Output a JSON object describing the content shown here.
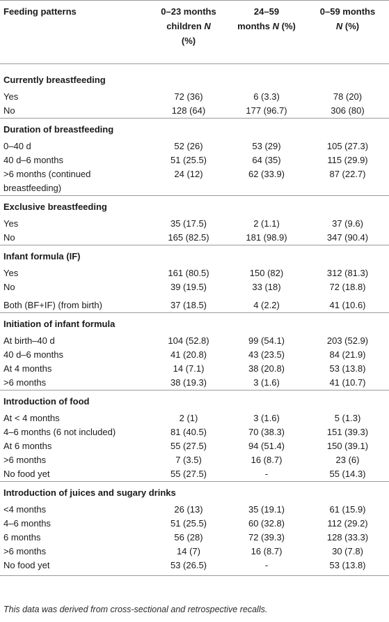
{
  "table": {
    "headers": {
      "col0": "Feeding patterns",
      "col1_line1": "0–23 months",
      "col1_line2_a": "children ",
      "col1_line2_n": "N",
      "col1_line3": "(%)",
      "col2_line1": "24–59",
      "col2_line2_a": "months ",
      "col2_line2_n": "N",
      "col2_line2_b": " (%)",
      "col3_line1": "0–59 months",
      "col3_line2_n": "N",
      "col3_line2_b": " (%)"
    },
    "sections": [
      {
        "title": "Currently breastfeeding",
        "rows": [
          {
            "label": "Yes",
            "c1": "72 (36)",
            "c2": "6 (3.3)",
            "c3": "78 (20)"
          },
          {
            "label": "No",
            "c1": "128 (64)",
            "c2": "177 (96.7)",
            "c3": "306 (80)"
          }
        ]
      },
      {
        "title": "Duration of breastfeeding",
        "rows": [
          {
            "label": "0–40 d",
            "c1": "52 (26)",
            "c2": "53 (29)",
            "c3": "105 (27.3)"
          },
          {
            "label": "40 d–6 months",
            "c1": "51 (25.5)",
            "c2": "64 (35)",
            "c3": "115 (29.9)"
          },
          {
            "label": ">6 months (continued",
            "label2": "breastfeeding)",
            "c1": "24 (12)",
            "c2": "62 (33.9)",
            "c3": "87 (22.7)"
          }
        ]
      },
      {
        "title": "Exclusive breastfeeding",
        "rows": [
          {
            "label": "Yes",
            "c1": "35 (17.5)",
            "c2": "2 (1.1)",
            "c3": "37 (9.6)"
          },
          {
            "label": "No",
            "c1": "165 (82.5)",
            "c2": "181 (98.9)",
            "c3": "347 (90.4)"
          }
        ]
      },
      {
        "title": "Infant formula (IF)",
        "rows": [
          {
            "label": "Yes",
            "c1": "161 (80.5)",
            "c2": "150 (82)",
            "c3": "312 (81.3)"
          },
          {
            "label": "No",
            "c1": "39 (19.5)",
            "c2": "33 (18)",
            "c3": "72 (18.8)"
          },
          {
            "label": "Both (BF+IF) (from birth)",
            "c1": "37 (18.5)",
            "c2": "4 (2.2)",
            "c3": "41 (10.6)"
          }
        ]
      },
      {
        "title": "Initiation of infant formula",
        "rows": [
          {
            "label": "At birth–40 d",
            "c1": "104 (52.8)",
            "c2": "99 (54.1)",
            "c3": "203 (52.9)"
          },
          {
            "label": "40 d–6 months",
            "c1": "41 (20.8)",
            "c2": "43 (23.5)",
            "c3": "84 (21.9)"
          },
          {
            "label": "At 4 months",
            "c1": "14 (7.1)",
            "c2": "38 (20.8)",
            "c3": "53 (13.8)"
          },
          {
            "label": ">6 months",
            "c1": "38 (19.3)",
            "c2": "3 (1.6)",
            "c3": "41 (10.7)"
          }
        ]
      },
      {
        "title": "Introduction of food",
        "rows": [
          {
            "label": "At < 4 months",
            "c1": "2 (1)",
            "c2": "3 (1.6)",
            "c3": "5 (1.3)"
          },
          {
            "label": "4–6 months (6 not included)",
            "c1": "81 (40.5)",
            "c2": "70 (38.3)",
            "c3": "151 (39.3)"
          },
          {
            "label": "At 6 months",
            "c1": "55 (27.5)",
            "c2": "94 (51.4)",
            "c3": "150 (39.1)"
          },
          {
            "label": ">6 months",
            "c1": "7 (3.5)",
            "c2": "16 (8.7)",
            "c3": "23 (6)"
          },
          {
            "label": "No food yet",
            "c1": "55 (27.5)",
            "c2": "-",
            "c3": "55 (14.3)"
          }
        ]
      },
      {
        "title": "Introduction of juices and sugary drinks",
        "rows": [
          {
            "label": "<4 months",
            "c1": "26 (13)",
            "c2": "35 (19.1)",
            "c3": "61 (15.9)"
          },
          {
            "label": "4–6 months",
            "c1": "51 (25.5)",
            "c2": "60 (32.8)",
            "c3": "112 (29.2)"
          },
          {
            "label": "6 months",
            "c1": "56 (28)",
            "c2": "72 (39.3)",
            "c3": "128 (33.3)"
          },
          {
            "label": ">6 months",
            "c1": "14 (7)",
            "c2": "16 (8.7)",
            "c3": "30 (7.8)"
          },
          {
            "label": "No food yet",
            "c1": "53 (26.5)",
            "c2": "-",
            "c3": "53 (13.8)"
          }
        ]
      }
    ]
  },
  "footnote": "This data was derived from cross-sectional and retrospective recalls."
}
